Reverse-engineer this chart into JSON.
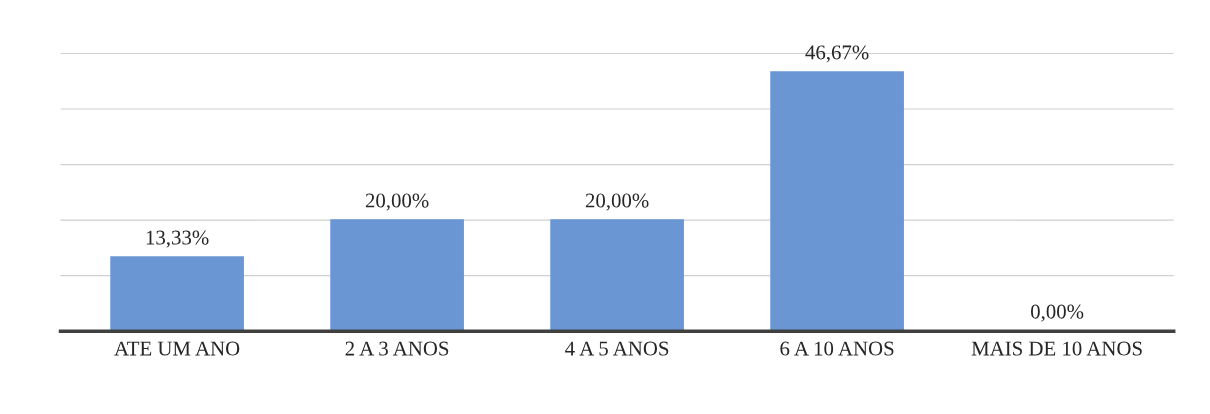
{
  "chart_data": {
    "type": "bar",
    "categories": [
      "ATE UM ANO",
      "2 A 3 ANOS",
      "4 A 5 ANOS",
      "6 A 10 ANOS",
      "MAIS DE 10 ANOS"
    ],
    "values": [
      13.33,
      20.0,
      20.0,
      46.67,
      0.0
    ],
    "value_labels": [
      "13,33%",
      "20,00%",
      "20,00%",
      "46,67%",
      "0,00%"
    ],
    "color": "#6a96d4",
    "grid": "y",
    "tick_labels": "x"
  }
}
